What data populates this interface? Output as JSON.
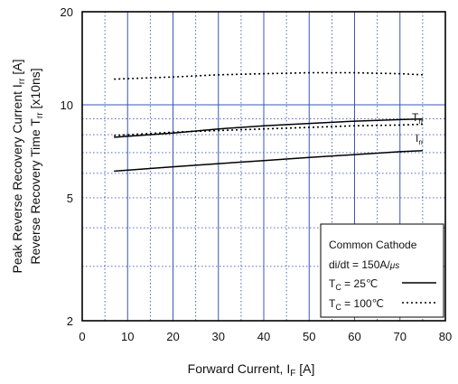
{
  "chart_data": {
    "type": "line",
    "xlabel": "Forward  Current,  I",
    "xlabel_sub": "F",
    "xlabel_unit": "  [A]",
    "ylabel_line1": "Peak Reverse Recovery Current I",
    "ylabel_line1_sub": "rr",
    "ylabel_line1_unit": " [A]",
    "ylabel_line2": "Reverse Recovery Time  T",
    "ylabel_line2_sub": "rr",
    "ylabel_line2_unit": " [x10ns]",
    "xlim": [
      0,
      80
    ],
    "ylim": [
      2,
      20
    ],
    "yscale": "log",
    "x_ticks": [
      "0",
      "10",
      "20",
      "30",
      "40",
      "50",
      "60",
      "70",
      "80"
    ],
    "y_ticks": [
      "2",
      "5",
      "10",
      "20"
    ],
    "grid": true,
    "series": [
      {
        "name": "Trr",
        "label_main": "T",
        "label_sub": "rr",
        "style": "solid",
        "x": [
          7,
          20,
          30,
          40,
          50,
          60,
          70,
          75
        ],
        "y": [
          7.85,
          8.1,
          8.35,
          8.55,
          8.7,
          8.85,
          8.95,
          9.0
        ]
      },
      {
        "name": "Trr",
        "style": "dotted",
        "x": [
          7,
          20,
          30,
          40,
          50,
          60,
          70,
          75
        ],
        "y": [
          12.1,
          12.3,
          12.5,
          12.6,
          12.7,
          12.7,
          12.6,
          12.5
        ]
      },
      {
        "name": "Irr",
        "label_main": "I",
        "label_sub": "rr",
        "style": "solid",
        "x": [
          7,
          20,
          30,
          40,
          50,
          60,
          70,
          75
        ],
        "y": [
          6.1,
          6.3,
          6.45,
          6.6,
          6.75,
          6.9,
          7.05,
          7.1
        ]
      },
      {
        "name": "Irr",
        "style": "dotted",
        "x": [
          7,
          20,
          30,
          40,
          50,
          60,
          70,
          75
        ],
        "y": [
          7.95,
          8.15,
          8.25,
          8.35,
          8.45,
          8.55,
          8.6,
          8.65
        ]
      }
    ],
    "legend": {
      "title": "Common Cathode",
      "condition": "di/dt = 150A/",
      "condition_unit": "μs",
      "entries": [
        {
          "main": "T",
          "sub": "C",
          "text": " =   25℃",
          "style": "solid"
        },
        {
          "main": "T",
          "sub": "C",
          "text": " = 100℃",
          "style": "dotted"
        }
      ],
      "placement": "bottom-right"
    }
  }
}
